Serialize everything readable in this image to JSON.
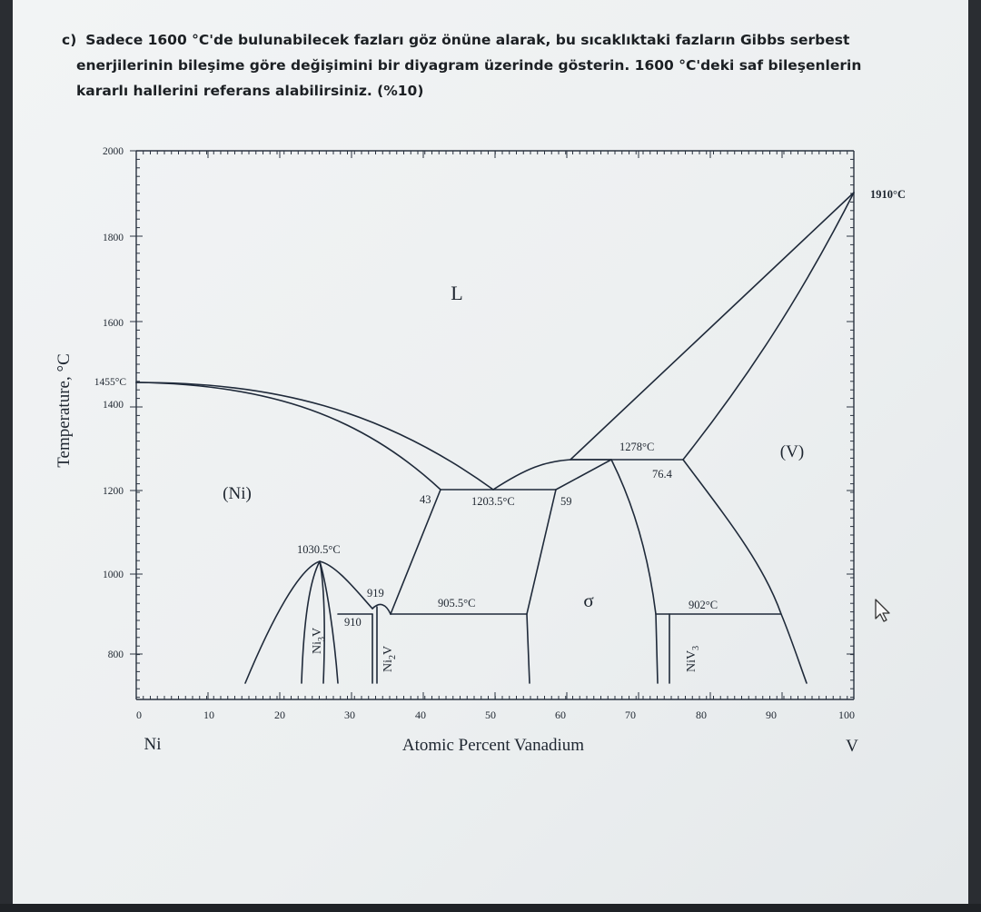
{
  "question": {
    "label": "c)",
    "line1": "Sadece 1600 °C'de bulunabilecek fazları göz önüne alarak, bu sıcaklıktaki fazların Gibbs serbest",
    "line2": "enerjilerinin bileşime göre değişimini bir diyagram üzerinde gösterin. 1600 °C'deki saf bileşenlerin",
    "line3": "kararlı hallerini referans alabilirsiniz. (%10)"
  },
  "diagram": {
    "y_axis_title": "Temperature, °C",
    "x_axis_title": "Atomic Percent Vanadium",
    "left_element": "Ni",
    "right_element": "V",
    "y_ticks": [
      "2000",
      "1800",
      "1600",
      "1455°C",
      "1400",
      "1200",
      "1000",
      "800"
    ],
    "x_ticks": [
      "0",
      "10",
      "20",
      "30",
      "40",
      "50",
      "60",
      "70",
      "80",
      "90",
      "100"
    ],
    "phase_labels": {
      "liquid": "L",
      "ni": "(Ni)",
      "v": "(V)",
      "sigma": "σ",
      "ni3v_base": "Ni",
      "ni3v_sub": "3",
      "ni3v_end": "V",
      "ni2v_base": "Ni",
      "ni2v_sub": "2",
      "ni2v_end": "V",
      "niv3_base": "NiV",
      "niv3_sub": "3"
    },
    "annotations": {
      "v_melting": "1910°C",
      "peritectic": "1278°C",
      "peritectic_comp": "76.4",
      "eutectic": "1203.5°C",
      "eutectic_left": "43",
      "eutectic_right": "59",
      "ni3v_max": "1030.5°C",
      "t919": "919",
      "t910": "910",
      "t905": "905.5°C",
      "t902": "902°C"
    }
  }
}
